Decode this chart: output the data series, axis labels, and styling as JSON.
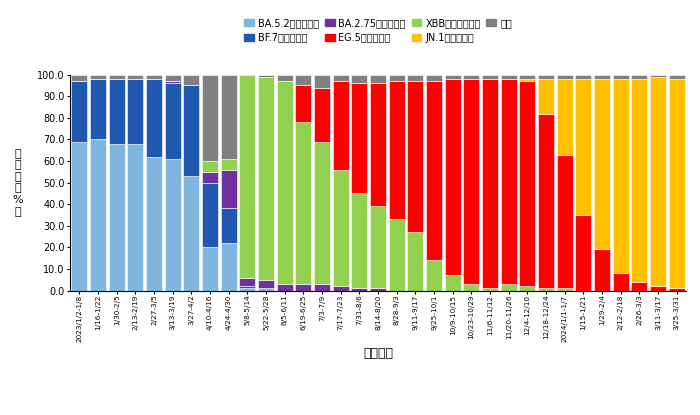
{
  "categories": [
    "2023/1/2-1/8",
    "1/16-1/22",
    "1/30-2/5",
    "2/13-2/19",
    "2/27-3/5",
    "3/13-3/19",
    "3/27-4/2",
    "4/10-4/16",
    "4/24-4/30",
    "5/8-5/14",
    "5/22-5/28",
    "6/5-6/11",
    "6/19-6/25",
    "7/3-7/9",
    "7/17-7/23",
    "7/31-8/6",
    "8/14-8/20",
    "8/28-9/3",
    "9/11-9/17",
    "9/25-10/1",
    "10/9-10/15",
    "10/23-10/29",
    "11/6-11/12",
    "11/20-11/26",
    "12/4-12/10",
    "12/18-12/24",
    "2024/1/1-1/7",
    "1/15-1/21",
    "1/29-2/4",
    "2/12-2/18",
    "2/26-3/3",
    "3/11-3/17",
    "3/25-3/31"
  ],
  "BA52": [
    69,
    70,
    68,
    68,
    62,
    61,
    53,
    20,
    22,
    1,
    1,
    0,
    0,
    0,
    0,
    0,
    0,
    0,
    0,
    0,
    0,
    0,
    0,
    0,
    0,
    0,
    0,
    0,
    0,
    0,
    0,
    0,
    0
  ],
  "BF7": [
    28,
    28,
    30,
    30,
    36,
    35,
    42,
    30,
    16,
    1,
    0,
    0,
    0,
    0,
    0,
    0,
    0,
    0,
    0,
    0,
    0,
    0,
    0,
    0,
    0,
    0,
    0,
    0,
    0,
    0,
    0,
    0,
    0
  ],
  "BA275": [
    0,
    0,
    0,
    0,
    0,
    1,
    0,
    5,
    18,
    4,
    4,
    3,
    3,
    3,
    2,
    1,
    1,
    0,
    0,
    0,
    0,
    0,
    0,
    0,
    0,
    0,
    0,
    0,
    0,
    0,
    0,
    0,
    0
  ],
  "XBB": [
    0,
    0,
    0,
    0,
    0,
    0,
    0,
    5,
    5,
    94,
    94,
    94,
    75,
    66,
    54,
    44,
    38,
    33,
    27,
    14,
    7,
    3,
    1,
    3,
    2,
    1,
    1,
    0,
    0,
    0,
    0,
    0,
    0
  ],
  "EG5": [
    0,
    0,
    0,
    0,
    0,
    0,
    0,
    0,
    0,
    0,
    0,
    0,
    17,
    25,
    41,
    51,
    57,
    64,
    70,
    83,
    91,
    95,
    97,
    95,
    95,
    81,
    62,
    35,
    19,
    8,
    4,
    2,
    1
  ],
  "JN1": [
    0,
    0,
    0,
    0,
    0,
    0,
    0,
    0,
    0,
    0,
    0,
    0,
    0,
    0,
    0,
    0,
    0,
    0,
    0,
    0,
    0,
    0,
    0,
    0,
    1,
    16,
    35,
    63,
    79,
    90,
    94,
    97,
    97
  ],
  "other": [
    3,
    2,
    2,
    2,
    2,
    3,
    5,
    40,
    39,
    1,
    1,
    3,
    5,
    6,
    3,
    4,
    4,
    3,
    3,
    3,
    2,
    2,
    2,
    2,
    2,
    2,
    2,
    2,
    2,
    2,
    2,
    1,
    2
  ],
  "colors": {
    "BA52": "#7EB6E0",
    "BF7": "#2058B0",
    "BA275": "#7030A0",
    "XBB": "#92D050",
    "EG5": "#FF0000",
    "JN1": "#FFC000",
    "other": "#808080"
  },
  "legend_labels": {
    "BA52": "BA.5.2及其亚分支",
    "BF7": "BF.7及其亚分支",
    "BA275": "BA.2.75及其亚分支",
    "EG5": "EG.5及其亚分支",
    "XBB": "XBB其他进化分支",
    "JN1": "JN.1及其亚分支",
    "other": "其它"
  },
  "ylabel": "构\n成\n比\n（\n%\n）",
  "xlabel": "采样日期",
  "ylim": [
    0,
    100
  ],
  "yticks": [
    0.0,
    10.0,
    20.0,
    30.0,
    40.0,
    50.0,
    60.0,
    70.0,
    80.0,
    90.0,
    100.0
  ]
}
